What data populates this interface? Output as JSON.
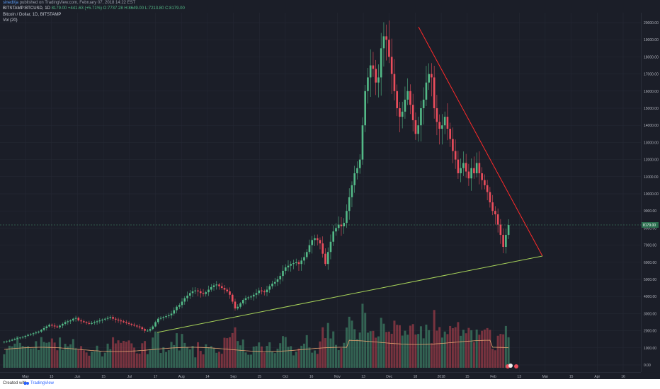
{
  "header": {
    "author": "sinedl/ja",
    "published": "published on TradingView.com, February 07, 2018 14:22 EST"
  },
  "ohlc": {
    "symbol": "BITSTAMP:BTCUSD, 1D",
    "last": "8179.00",
    "change": "+441.63 (+5.71%)",
    "open": "O:7737.28",
    "high": "H:8649.00",
    "low": "L:7213.80",
    "close": "C:8179.00"
  },
  "legend": {
    "title": "Bitcoin / Dollar, 1D, BITSTAMP",
    "vol": "Vol (20)"
  },
  "footer": {
    "created": "Created with",
    "brand": "TradingView"
  },
  "colors": {
    "background": "#1b1e28",
    "up": "#53b987",
    "down": "#eb4d5c",
    "resistance_line": "#ff2a2a",
    "support_line": "#a8d45a",
    "ma_line": "#e8a472",
    "price_tag": "#2a6e4e"
  },
  "chart_data": {
    "type": "candlestick",
    "title": "Bitcoin / Dollar, 1D, BITSTAMP",
    "price_axis_ticks": [
      "20000.00",
      "19000.00",
      "18000.00",
      "17000.00",
      "16000.00",
      "15000.00",
      "14000.00",
      "13000.00",
      "12000.00",
      "11000.00",
      "10000.00",
      "9000.00",
      "8000.00",
      "7000.00",
      "6000.00",
      "5000.00",
      "4000.00",
      "3000.00",
      "2000.00",
      "1000.00",
      "0.00"
    ],
    "date_axis_ticks": [
      "May",
      "15",
      "Jun",
      "15",
      "Jul",
      "17",
      "Aug",
      "14",
      "Sep",
      "15",
      "Oct",
      "16",
      "Nov",
      "13",
      "Dec",
      "18",
      "2018",
      "15",
      "Feb",
      "13",
      "Mar",
      "15",
      "Apr",
      "16"
    ],
    "current_price_label": "8179.00",
    "ylim": [
      0,
      20000
    ],
    "series_closes": [
      1350,
      1380,
      1420,
      1470,
      1520,
      1560,
      1600,
      1640,
      1700,
      1760,
      1800,
      1850,
      1900,
      1950,
      2050,
      2150,
      2250,
      2350,
      2300,
      2250,
      2200,
      2300,
      2400,
      2500,
      2550,
      2600,
      2700,
      2750,
      2600,
      2550,
      2500,
      2450,
      2400,
      2450,
      2500,
      2550,
      2600,
      2650,
      2700,
      2750,
      2800,
      2700,
      2650,
      2600,
      2550,
      2500,
      2450,
      2400,
      2350,
      2300,
      2250,
      2200,
      2100,
      2000,
      2000,
      2100,
      2250,
      2500,
      2700,
      2750,
      2800,
      2850,
      2900,
      3000,
      3200,
      3400,
      3500,
      3700,
      3900,
      4050,
      4200,
      4300,
      4350,
      4300,
      4200,
      4150,
      4250,
      4400,
      4550,
      4650,
      4700,
      4600,
      4500,
      4400,
      4300,
      4100,
      3700,
      3300,
      3400,
      3600,
      3800,
      3900,
      3950,
      4000,
      4100,
      4200,
      4350,
      4300,
      4250,
      4400,
      4600,
      4750,
      4850,
      5000,
      5200,
      5500,
      5700,
      5800,
      5900,
      5950,
      6000,
      5900,
      6100,
      6300,
      6600,
      7000,
      7300,
      7400,
      7300,
      7100,
      6500,
      5900,
      6600,
      7200,
      7800,
      8000,
      8200,
      8100,
      8300,
      9000,
      9800,
      10500,
      11200,
      11500,
      12000,
      14000,
      16000,
      16800,
      17500,
      17300,
      16500,
      16800,
      18500,
      19200,
      19000,
      18000,
      17000,
      16000,
      15000,
      14500,
      14800,
      15500,
      16000,
      15200,
      14300,
      13500,
      14000,
      15000,
      15500,
      16500,
      17000,
      16800,
      15000,
      14200,
      13800,
      14000,
      14500,
      13800,
      13200,
      12500,
      12000,
      11200,
      11500,
      11800,
      11300,
      10900,
      11500,
      11200,
      11800,
      11200,
      10800,
      10500,
      10100,
      9500,
      9000,
      8800,
      8200,
      7600,
      6900,
      7600,
      8179
    ]
  }
}
